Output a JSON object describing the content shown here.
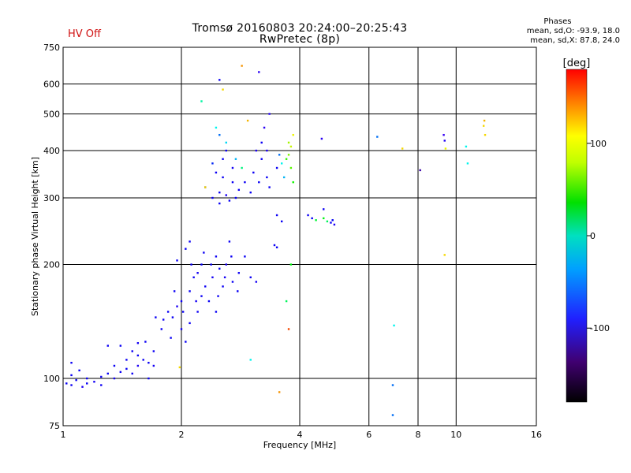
{
  "header": {
    "title": "Tromsø 20160803 20:24:00–20:25:43",
    "subtitle": "RwPretec (8p)",
    "status": "HV Off",
    "phases_title": "Phases",
    "phases_o": "mean, sd,O: -93.9, 18.0",
    "phases_x": "mean, sd,X:  87.8, 24.0"
  },
  "colorbar": {
    "label": "[deg]",
    "ticks": [
      "100",
      "0",
      "-100"
    ],
    "tick_values": [
      100,
      0,
      -100
    ],
    "range": [
      -180,
      180
    ]
  },
  "chart_data": {
    "type": "scatter",
    "xlabel": "Frequency [MHz]",
    "ylabel": "Stationary phase Virtual Height [km]",
    "x_scale": "log",
    "y_scale": "log",
    "xlim": [
      1,
      16
    ],
    "ylim": [
      75,
      750
    ],
    "x_ticks": [
      1,
      2,
      4,
      6,
      8,
      10,
      16
    ],
    "x_tick_labels": [
      "1",
      "2",
      "4",
      "6",
      "8",
      "10",
      "16"
    ],
    "y_ticks": [
      75,
      100,
      200,
      300,
      400,
      500,
      600,
      750
    ],
    "y_tick_labels": [
      "75",
      "100",
      "200",
      "300",
      "400",
      "500",
      "600",
      "750"
    ],
    "grid": true,
    "series": [
      {
        "points": [
          [
            1.02,
            97,
            -95
          ],
          [
            1.05,
            96,
            -100
          ],
          [
            1.08,
            99,
            -95
          ],
          [
            1.12,
            95,
            -110
          ],
          [
            1.15,
            100,
            -98
          ],
          [
            1.2,
            98,
            -105
          ],
          [
            1.25,
            101,
            -100
          ],
          [
            1.3,
            103,
            -95
          ],
          [
            1.35,
            100,
            -105
          ],
          [
            1.4,
            104,
            -100
          ],
          [
            1.45,
            106,
            -95
          ],
          [
            1.5,
            103,
            -100
          ],
          [
            1.55,
            108,
            -110
          ],
          [
            1.6,
            112,
            -100
          ],
          [
            1.65,
            110,
            -95
          ],
          [
            1.7,
            118,
            -100
          ],
          [
            1.05,
            110,
            -100
          ],
          [
            1.1,
            105,
            -95
          ],
          [
            1.3,
            122,
            -100
          ],
          [
            1.4,
            122,
            -95
          ],
          [
            1.5,
            118,
            -100
          ],
          [
            1.55,
            124,
            -105
          ],
          [
            1.62,
            125,
            -100
          ],
          [
            1.72,
            145,
            -95
          ],
          [
            1.8,
            143,
            -100
          ],
          [
            1.85,
            150,
            -95
          ],
          [
            1.9,
            145,
            -100
          ],
          [
            1.95,
            155,
            -110
          ],
          [
            2.0,
            160,
            -100
          ],
          [
            2.0,
            135,
            -105
          ],
          [
            2.05,
            125,
            -95
          ],
          [
            2.1,
            140,
            -100
          ],
          [
            2.1,
            170,
            -95
          ],
          [
            2.15,
            185,
            -100
          ],
          [
            2.2,
            190,
            -105
          ],
          [
            2.2,
            150,
            -100
          ],
          [
            2.25,
            200,
            -95
          ],
          [
            2.3,
            175,
            -100
          ],
          [
            2.35,
            160,
            -95
          ],
          [
            2.4,
            185,
            -105
          ],
          [
            2.45,
            210,
            -100
          ],
          [
            2.5,
            195,
            -95
          ],
          [
            2.55,
            175,
            -100
          ],
          [
            2.6,
            200,
            -110
          ],
          [
            2.65,
            230,
            -100
          ],
          [
            2.7,
            180,
            -95
          ],
          [
            2.8,
            190,
            -100
          ],
          [
            2.9,
            210,
            -95
          ],
          [
            3.0,
            185,
            -100
          ],
          [
            3.1,
            180,
            -105
          ],
          [
            1.95,
            205,
            -100
          ],
          [
            2.05,
            220,
            -95
          ],
          [
            2.1,
            230,
            -100
          ],
          [
            2.25,
            165,
            -100
          ],
          [
            2.45,
            150,
            -95
          ],
          [
            2.3,
            320,
            -90
          ],
          [
            2.4,
            300,
            -100
          ],
          [
            2.5,
            310,
            -95
          ],
          [
            2.55,
            340,
            -100
          ],
          [
            2.6,
            305,
            -110
          ],
          [
            2.65,
            295,
            -95
          ],
          [
            2.7,
            330,
            -100
          ],
          [
            2.75,
            300,
            -95
          ],
          [
            2.8,
            315,
            -100
          ],
          [
            2.5,
            290,
            -95
          ],
          [
            2.45,
            350,
            -100
          ],
          [
            2.55,
            380,
            -95
          ],
          [
            2.6,
            400,
            -100
          ],
          [
            2.7,
            360,
            -105
          ],
          [
            2.4,
            370,
            -80
          ],
          [
            2.5,
            440,
            -60
          ],
          [
            2.6,
            420,
            -30
          ],
          [
            2.75,
            380,
            -40
          ],
          [
            2.45,
            460,
            -20
          ],
          [
            2.85,
            360,
            10
          ],
          [
            2.9,
            330,
            -100
          ],
          [
            3.0,
            310,
            -95
          ],
          [
            3.05,
            350,
            -100
          ],
          [
            3.1,
            400,
            -110
          ],
          [
            3.15,
            330,
            -95
          ],
          [
            3.2,
            420,
            -100
          ],
          [
            3.25,
            460,
            -120
          ],
          [
            3.3,
            400,
            -110
          ],
          [
            3.35,
            500,
            -115
          ],
          [
            3.2,
            380,
            -100
          ],
          [
            3.3,
            340,
            -95
          ],
          [
            3.35,
            320,
            -100
          ],
          [
            3.5,
            360,
            -95
          ],
          [
            3.55,
            390,
            -60
          ],
          [
            3.6,
            370,
            -20
          ],
          [
            3.65,
            340,
            -40
          ],
          [
            3.7,
            380,
            60
          ],
          [
            3.75,
            390,
            80
          ],
          [
            3.8,
            360,
            70
          ],
          [
            3.85,
            330,
            50
          ],
          [
            3.75,
            420,
            90
          ],
          [
            3.8,
            410,
            100
          ],
          [
            3.85,
            440,
            110
          ],
          [
            3.5,
            270,
            -100
          ],
          [
            3.6,
            260,
            -95
          ],
          [
            3.45,
            225,
            -100
          ],
          [
            3.5,
            222,
            -95
          ],
          [
            3.8,
            200,
            40
          ],
          [
            3.7,
            160,
            20
          ],
          [
            3.75,
            135,
            160
          ],
          [
            3.55,
            92,
            140
          ],
          [
            3.0,
            112,
            -20
          ],
          [
            2.85,
            670,
            140
          ],
          [
            3.15,
            645,
            -120
          ],
          [
            2.5,
            615,
            -100
          ],
          [
            2.55,
            580,
            120
          ],
          [
            2.95,
            480,
            130
          ],
          [
            2.3,
            320,
            120
          ],
          [
            2.25,
            540,
            0
          ],
          [
            1.98,
            107,
            120
          ],
          [
            4.2,
            270,
            -100
          ],
          [
            4.3,
            265,
            -90
          ],
          [
            4.4,
            262,
            30
          ],
          [
            4.6,
            265,
            40
          ],
          [
            4.7,
            260,
            20
          ],
          [
            4.8,
            258,
            -100
          ],
          [
            4.9,
            255,
            -110
          ],
          [
            4.85,
            262,
            -90
          ],
          [
            4.6,
            280,
            -100
          ],
          [
            4.55,
            430,
            -120
          ],
          [
            6.3,
            435,
            -60
          ],
          [
            6.9,
            96,
            -60
          ],
          [
            6.9,
            80,
            -60
          ],
          [
            6.95,
            138,
            -20
          ],
          [
            7.3,
            405,
            120
          ],
          [
            8.1,
            355,
            -150
          ],
          [
            9.3,
            440,
            -130
          ],
          [
            9.35,
            425,
            -110
          ],
          [
            9.4,
            405,
            110
          ],
          [
            9.35,
            212,
            120
          ],
          [
            10.6,
            410,
            -20
          ],
          [
            10.7,
            370,
            -20
          ],
          [
            11.8,
            480,
            130
          ],
          [
            11.85,
            440,
            120
          ],
          [
            11.75,
            465,
            120
          ],
          [
            1.05,
            102,
            -100
          ],
          [
            1.15,
            97,
            -95
          ],
          [
            1.25,
            96,
            -100
          ],
          [
            1.35,
            108,
            -95
          ],
          [
            1.45,
            112,
            -100
          ],
          [
            1.55,
            115,
            -95
          ],
          [
            1.65,
            100,
            -100
          ],
          [
            1.7,
            108,
            -105
          ],
          [
            1.78,
            135,
            -100
          ],
          [
            1.88,
            128,
            -95
          ],
          [
            1.92,
            170,
            -100
          ],
          [
            2.02,
            150,
            -95
          ],
          [
            2.12,
            200,
            -100
          ],
          [
            2.18,
            160,
            -105
          ],
          [
            2.28,
            215,
            -100
          ],
          [
            2.38,
            200,
            -95
          ],
          [
            2.48,
            165,
            -100
          ],
          [
            2.58,
            185,
            -105
          ],
          [
            2.68,
            210,
            -100
          ],
          [
            2.78,
            170,
            -95
          ]
        ]
      }
    ]
  }
}
